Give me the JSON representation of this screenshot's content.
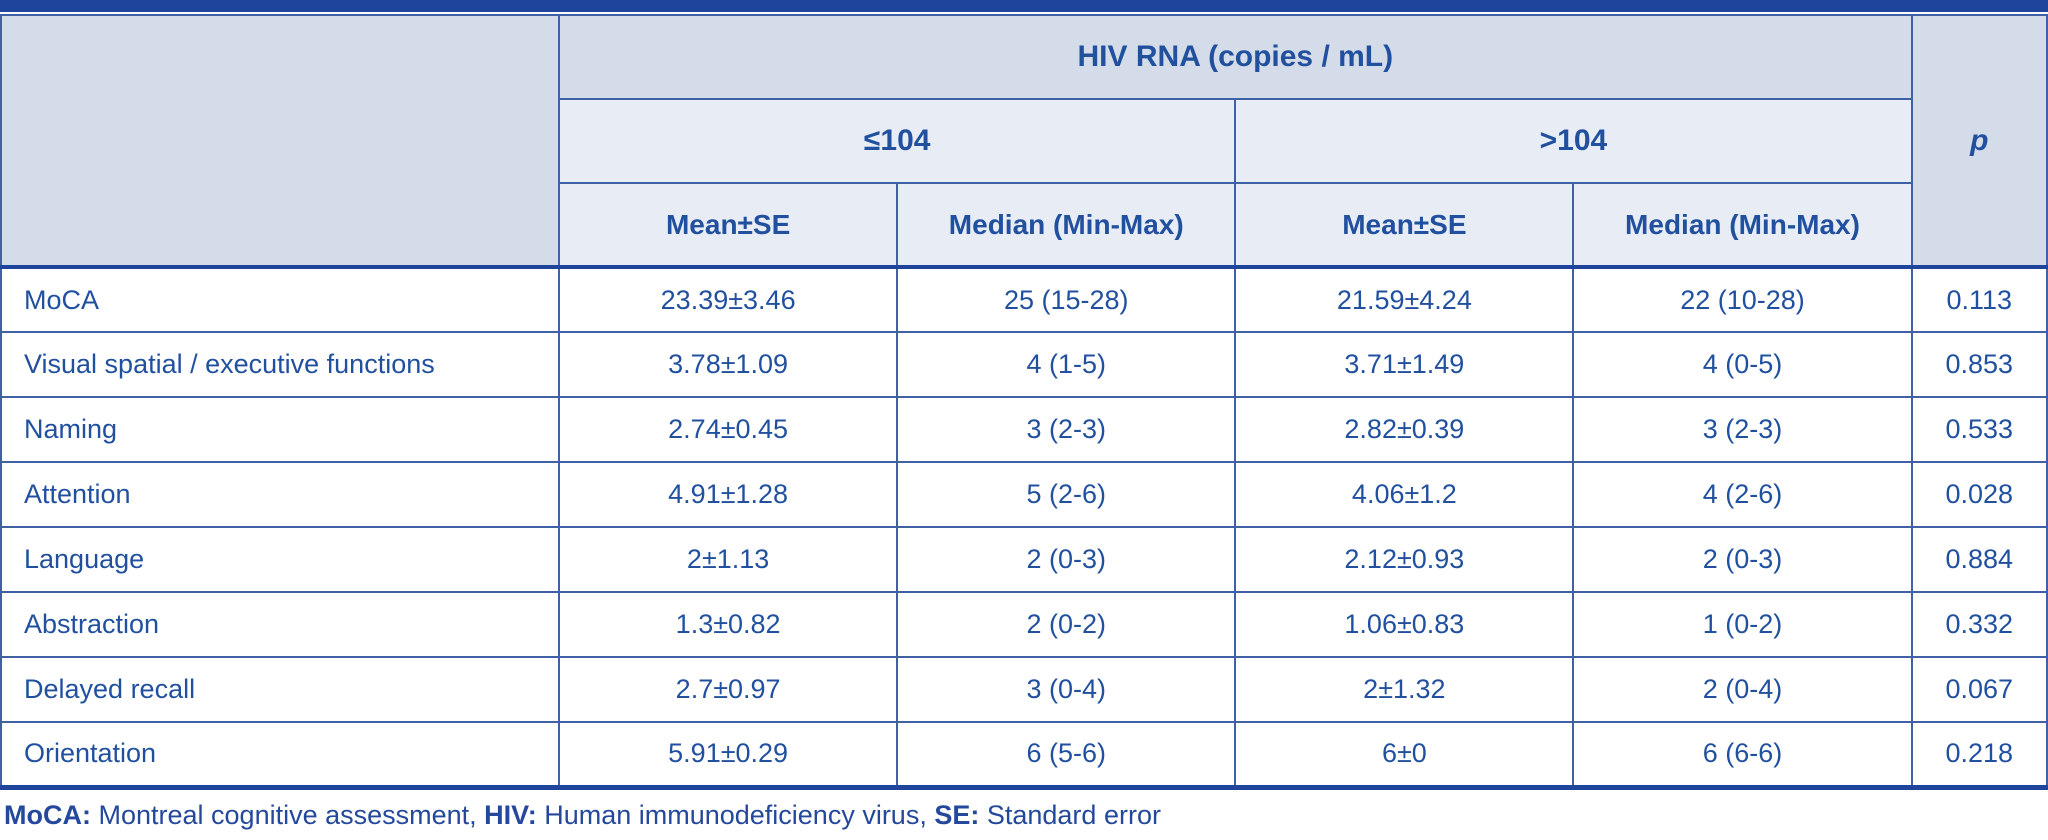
{
  "table": {
    "group_header": "HIV RNA (copies / mL)",
    "p_header": "p",
    "subgroups": [
      {
        "label": "≤104"
      },
      {
        "label": ">104"
      }
    ],
    "col_headers": [
      "Mean±SE",
      "Median (Min-Max)",
      "Mean±SE",
      "Median (Min-Max)"
    ],
    "rows": [
      {
        "label": "MoCA",
        "le_mean": "23.39±3.46",
        "le_median": "25 (15-28)",
        "gt_mean": "21.59±4.24",
        "gt_median": "22 (10-28)",
        "p": "0.113"
      },
      {
        "label": "Visual spatial / executive functions",
        "le_mean": "3.78±1.09",
        "le_median": "4 (1-5)",
        "gt_mean": "3.71±1.49",
        "gt_median": "4 (0-5)",
        "p": "0.853"
      },
      {
        "label": "Naming",
        "le_mean": "2.74±0.45",
        "le_median": "3 (2-3)",
        "gt_mean": "2.82±0.39",
        "gt_median": "3 (2-3)",
        "p": "0.533"
      },
      {
        "label": "Attention",
        "le_mean": "4.91±1.28",
        "le_median": "5 (2-6)",
        "gt_mean": "4.06±1.2",
        "gt_median": "4 (2-6)",
        "p": "0.028"
      },
      {
        "label": "Language",
        "le_mean": "2±1.13",
        "le_median": "2 (0-3)",
        "gt_mean": "2.12±0.93",
        "gt_median": "2 (0-3)",
        "p": "0.884"
      },
      {
        "label": "Abstraction",
        "le_mean": "1.3±0.82",
        "le_median": "2 (0-2)",
        "gt_mean": "1.06±0.83",
        "gt_median": "1 (0-2)",
        "p": "0.332"
      },
      {
        "label": "Delayed recall",
        "le_mean": "2.7±0.97",
        "le_median": "3 (0-4)",
        "gt_mean": "2±1.32",
        "gt_median": "2 (0-4)",
        "p": "0.067"
      },
      {
        "label": "Orientation",
        "le_mean": "5.91±0.29",
        "le_median": "6 (5-6)",
        "gt_mean": "6±0",
        "gt_median": "6 (6-6)",
        "p": "0.218"
      }
    ]
  },
  "footnote": {
    "segments": [
      {
        "bold": "MoCA:",
        "text": " Montreal cognitive assessment, "
      },
      {
        "bold": "HIV:",
        "text": " Human immunodeficiency virus, "
      },
      {
        "bold": "SE:",
        "text": " Standard error"
      }
    ]
  },
  "colors": {
    "bar_navy": "#1e449b",
    "grid_line": "#4060a6",
    "text_blue": "#21509f",
    "header_dark_fill": "#d4dbe9",
    "header_light_fill": "#e8ecf5"
  }
}
